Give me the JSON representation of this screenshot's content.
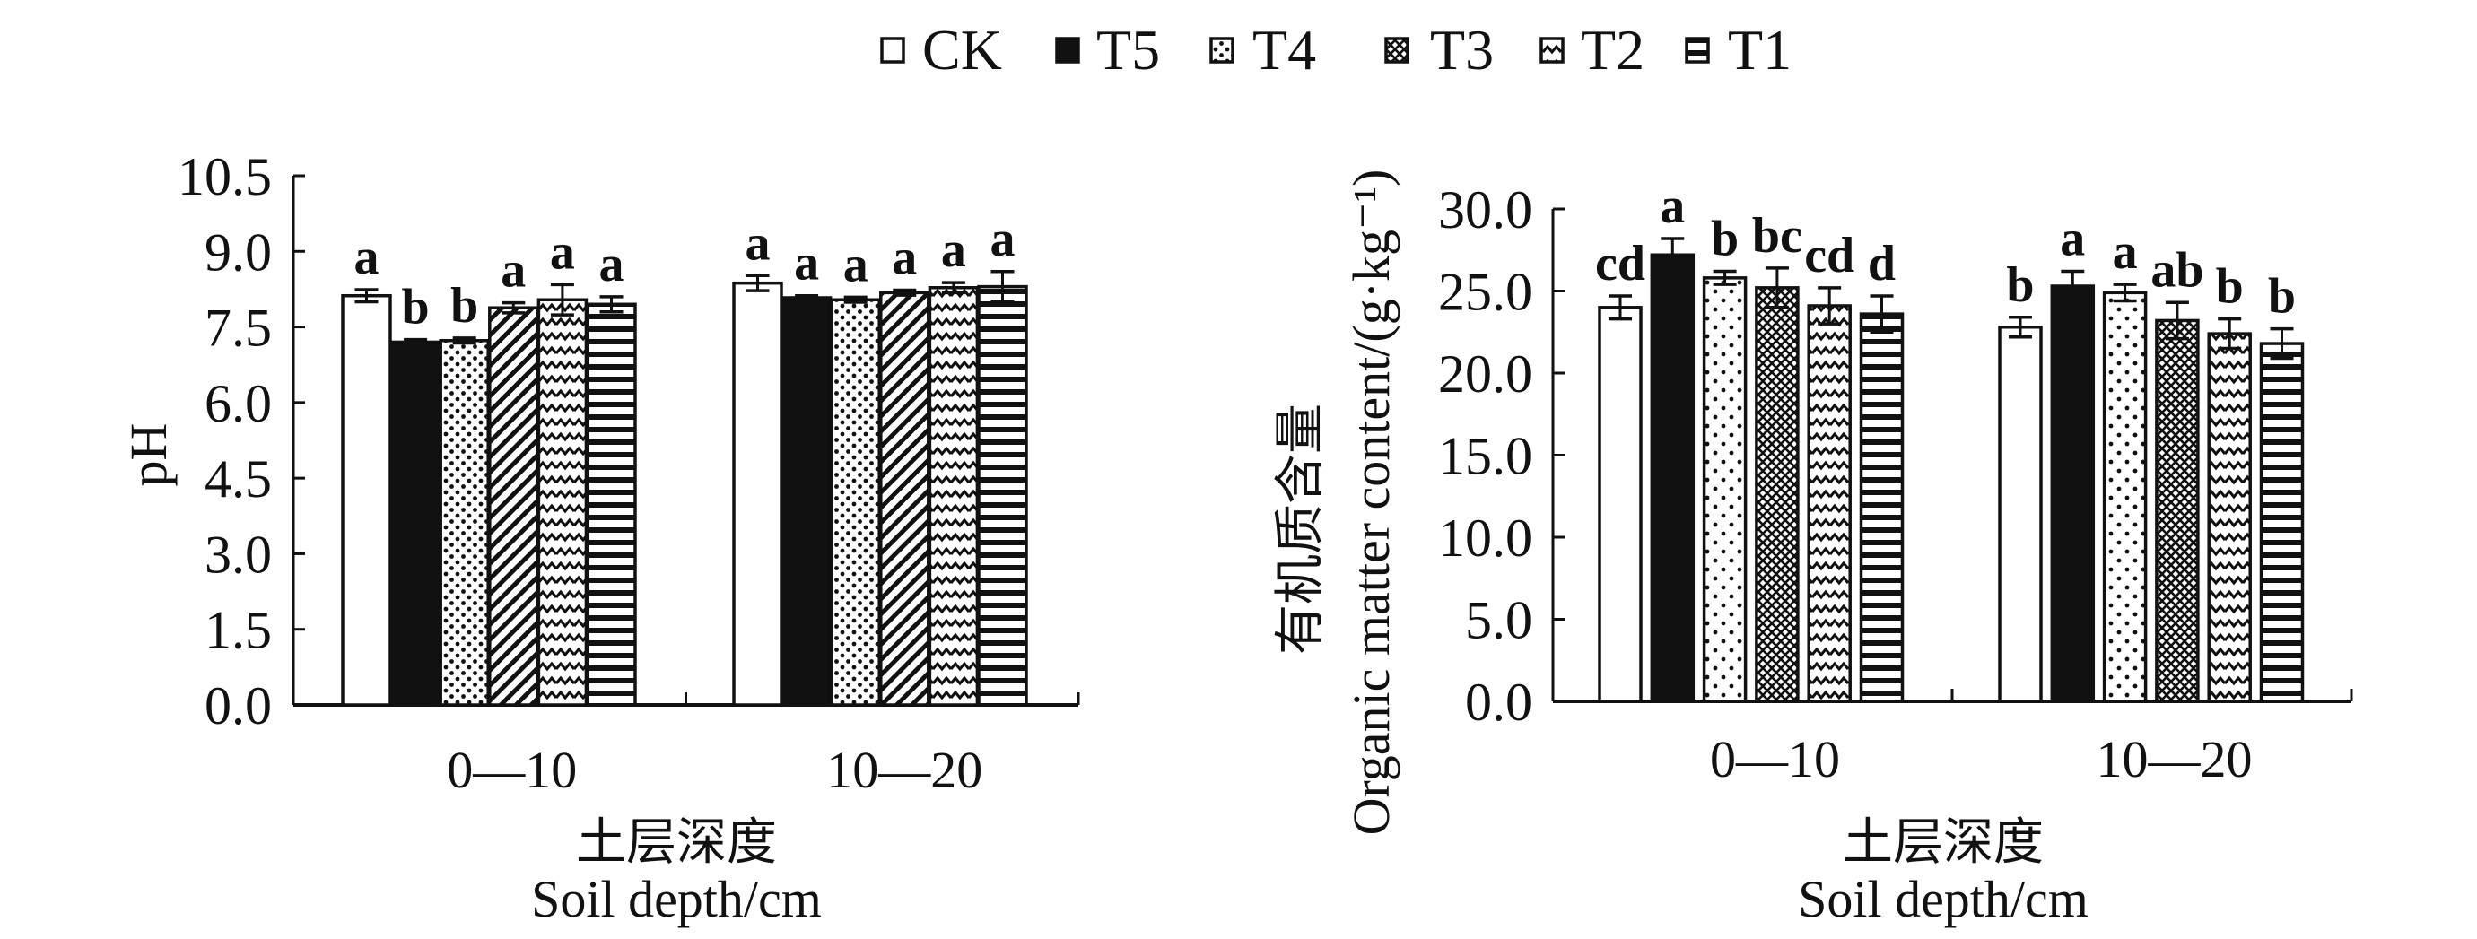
{
  "legend": [
    {
      "name": "CK",
      "pattern": "blank"
    },
    {
      "name": "T5",
      "pattern": "solid"
    },
    {
      "name": "T4",
      "pattern": "dots"
    },
    {
      "name": "T3",
      "pattern": "crosshatch"
    },
    {
      "name": "T2",
      "pattern": "zigzag"
    },
    {
      "name": "T1",
      "pattern": "hstripes"
    }
  ],
  "colors": {
    "ink": "#111111",
    "background": "#ffffff"
  },
  "chart_data": [
    {
      "type": "bar",
      "title": "",
      "categories": [
        "0—10",
        "10—20"
      ],
      "xlabel_cn": "土层深度",
      "xlabel": "Soil depth/cm",
      "ylabel": "pH",
      "ylim": [
        0,
        10.5
      ],
      "yticks": [
        "0.0",
        "1.5",
        "3.0",
        "4.5",
        "6.0",
        "7.5",
        "9.0",
        "10.5"
      ],
      "ytick_values": [
        0,
        1.5,
        3.0,
        4.5,
        6.0,
        7.5,
        9.0,
        10.5
      ],
      "series": [
        {
          "name": "CK",
          "values": [
            8.12,
            8.37
          ],
          "errors": [
            0.12,
            0.15
          ],
          "labels": [
            "a",
            "a"
          ]
        },
        {
          "name": "T5",
          "values": [
            7.2,
            8.08
          ],
          "errors": [
            0.05,
            0.04
          ],
          "labels": [
            "b",
            "a"
          ]
        },
        {
          "name": "T4",
          "values": [
            7.23,
            8.04
          ],
          "errors": [
            0.05,
            0.05
          ],
          "labels": [
            "b",
            "a"
          ]
        },
        {
          "name": "T3",
          "values": [
            7.88,
            8.18
          ],
          "errors": [
            0.1,
            0.05
          ],
          "labels": [
            "a",
            "a"
          ]
        },
        {
          "name": "T2",
          "values": [
            8.04,
            8.28
          ],
          "errors": [
            0.3,
            0.1
          ],
          "labels": [
            "a",
            "a"
          ]
        },
        {
          "name": "T1",
          "values": [
            7.95,
            8.3
          ],
          "errors": [
            0.15,
            0.3
          ],
          "labels": [
            "a",
            "a"
          ]
        }
      ],
      "grid": false,
      "legend_position": "top-center"
    },
    {
      "type": "bar",
      "title": "",
      "categories": [
        "0—10",
        "10—20"
      ],
      "xlabel_cn": "土层深度",
      "xlabel": "Soil depth/cm",
      "ylabel_cn": "有机质含量",
      "ylabel": "Organic matter content/(g·kg⁻¹)",
      "ylim": [
        0,
        30
      ],
      "yticks": [
        "0.0",
        "5.0",
        "10.0",
        "15.0",
        "20.0",
        "25.0",
        "30.0"
      ],
      "ytick_values": [
        0,
        5,
        10,
        15,
        20,
        25,
        30
      ],
      "series": [
        {
          "name": "CK",
          "values": [
            24.0,
            22.8
          ],
          "errors": [
            0.7,
            0.6
          ],
          "labels": [
            "cd",
            "b"
          ]
        },
        {
          "name": "T5",
          "values": [
            27.2,
            25.3
          ],
          "errors": [
            1.0,
            0.9
          ],
          "labels": [
            "a",
            "a"
          ]
        },
        {
          "name": "T4",
          "values": [
            25.8,
            24.9
          ],
          "errors": [
            0.4,
            0.5
          ],
          "labels": [
            "b",
            "a"
          ]
        },
        {
          "name": "T3",
          "values": [
            25.2,
            23.2
          ],
          "errors": [
            1.2,
            1.1
          ],
          "labels": [
            "bc",
            "ab"
          ]
        },
        {
          "name": "T2",
          "values": [
            24.1,
            22.4
          ],
          "errors": [
            1.1,
            0.9
          ],
          "labels": [
            "cd",
            "b"
          ]
        },
        {
          "name": "T1",
          "values": [
            23.6,
            21.8
          ],
          "errors": [
            1.1,
            0.9
          ],
          "labels": [
            "d",
            "b"
          ]
        }
      ],
      "grid": false,
      "legend_position": "top-center"
    }
  ]
}
